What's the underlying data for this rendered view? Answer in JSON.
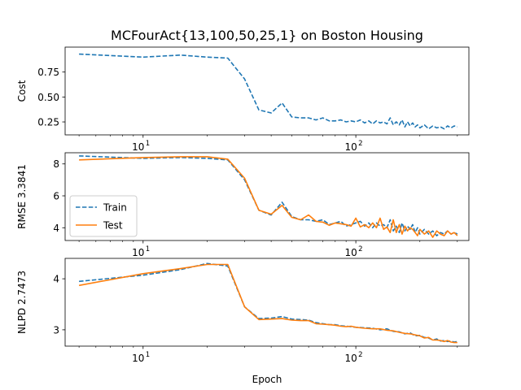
{
  "chart_data": {
    "type": "line",
    "title": "MCFourAct{13,100,50,25,1} on Boston Housing",
    "xlabel": "Epoch",
    "x_scale": "log",
    "xlim": [
      4.3,
      340
    ],
    "x_major_ticks": [
      {
        "base": "10",
        "exp": "1",
        "value": 10
      },
      {
        "base": "10",
        "exp": "2",
        "value": 100
      }
    ],
    "series_styles": {
      "Train": {
        "color": "#1f77b4",
        "dash": "dashed"
      },
      "Test": {
        "color": "#ff7f0e",
        "dash": "solid"
      }
    },
    "legend": {
      "entries": [
        "Train",
        "Test"
      ],
      "placement": "center-left",
      "panel": 1
    },
    "panels": [
      {
        "ylabel": "Cost",
        "ylim": [
          0.12,
          1.0
        ],
        "yticks": [
          {
            "label": "0.25",
            "value": 0.25
          },
          {
            "label": "0.50",
            "value": 0.5
          },
          {
            "label": "0.75",
            "value": 0.75
          }
        ],
        "series": [
          {
            "style": "Train",
            "x": [
              5,
              10,
              15,
              20,
              25,
              30,
              35,
              40,
              45,
              50,
              55,
              60,
              65,
              70,
              75,
              80,
              85,
              90,
              95,
              100,
              105,
              110,
              115,
              120,
              125,
              130,
              135,
              140,
              145,
              150,
              155,
              160,
              165,
              170,
              175,
              180,
              185,
              190,
              195,
              200,
              210,
              220,
              230,
              240,
              250,
              260,
              270,
              280,
              290,
              300
            ],
            "y": [
              0.93,
              0.9,
              0.92,
              0.9,
              0.89,
              0.68,
              0.37,
              0.34,
              0.44,
              0.3,
              0.29,
              0.29,
              0.27,
              0.29,
              0.26,
              0.26,
              0.27,
              0.25,
              0.26,
              0.25,
              0.27,
              0.24,
              0.26,
              0.23,
              0.26,
              0.24,
              0.25,
              0.23,
              0.29,
              0.22,
              0.25,
              0.22,
              0.27,
              0.2,
              0.25,
              0.21,
              0.24,
              0.2,
              0.22,
              0.19,
              0.22,
              0.18,
              0.21,
              0.19,
              0.2,
              0.18,
              0.21,
              0.19,
              0.21,
              0.2
            ]
          }
        ]
      },
      {
        "ylabel": "RMSE 3.3841",
        "ylim": [
          3.2,
          8.7
        ],
        "yticks": [
          {
            "label": "4",
            "value": 4
          },
          {
            "label": "6",
            "value": 6
          },
          {
            "label": "8",
            "value": 8
          }
        ],
        "series": [
          {
            "style": "Train",
            "x": [
              5,
              10,
              15,
              20,
              25,
              30,
              35,
              40,
              45,
              50,
              55,
              60,
              65,
              70,
              75,
              80,
              85,
              90,
              95,
              100,
              105,
              110,
              115,
              120,
              125,
              130,
              135,
              140,
              145,
              150,
              155,
              160,
              165,
              170,
              175,
              180,
              185,
              190,
              195,
              200,
              210,
              220,
              230,
              240,
              250,
              260,
              270,
              280,
              290,
              300
            ],
            "y": [
              8.5,
              8.35,
              8.4,
              8.35,
              8.25,
              7.0,
              5.1,
              4.8,
              5.6,
              4.7,
              4.5,
              4.5,
              4.4,
              4.5,
              4.2,
              4.3,
              4.4,
              4.1,
              4.2,
              4.3,
              4.4,
              4.1,
              4.3,
              4.0,
              4.3,
              4.1,
              4.2,
              4.0,
              4.5,
              3.8,
              4.1,
              3.7,
              4.3,
              3.8,
              4.1,
              3.9,
              4.2,
              3.7,
              4.0,
              3.6,
              3.9,
              3.6,
              3.8,
              3.5,
              3.7,
              3.6,
              3.8,
              3.6,
              3.7,
              3.6
            ]
          },
          {
            "style": "Test",
            "x": [
              5,
              10,
              15,
              20,
              25,
              30,
              35,
              40,
              45,
              50,
              55,
              60,
              65,
              70,
              75,
              80,
              85,
              90,
              95,
              100,
              105,
              110,
              115,
              120,
              125,
              130,
              135,
              140,
              145,
              150,
              155,
              160,
              165,
              170,
              175,
              180,
              185,
              190,
              195,
              200,
              210,
              220,
              230,
              240,
              250,
              260,
              270,
              280,
              290,
              300
            ],
            "y": [
              8.25,
              8.4,
              8.45,
              8.45,
              8.3,
              7.1,
              5.1,
              4.85,
              5.4,
              4.65,
              4.5,
              4.8,
              4.4,
              4.35,
              4.15,
              4.3,
              4.25,
              4.2,
              4.1,
              4.6,
              4.05,
              4.2,
              4.0,
              4.3,
              4.0,
              4.6,
              3.9,
              4.05,
              3.7,
              4.5,
              3.7,
              4.2,
              3.6,
              4.1,
              3.8,
              4.0,
              3.9,
              3.7,
              3.5,
              3.9,
              3.6,
              3.8,
              3.4,
              3.8,
              3.6,
              3.5,
              3.8,
              3.6,
              3.7,
              3.5
            ]
          }
        ]
      },
      {
        "ylabel": "NLPD 2.7473",
        "ylim": [
          2.68,
          4.4
        ],
        "yticks": [
          {
            "label": "3",
            "value": 3
          },
          {
            "label": "4",
            "value": 4
          }
        ],
        "series": [
          {
            "style": "Train",
            "x": [
              5,
              10,
              15,
              20,
              25,
              30,
              35,
              40,
              45,
              50,
              55,
              60,
              65,
              70,
              75,
              80,
              85,
              90,
              95,
              100,
              110,
              120,
              130,
              140,
              150,
              160,
              170,
              180,
              190,
              200,
              210,
              220,
              230,
              240,
              250,
              260,
              270,
              280,
              290,
              300
            ],
            "y": [
              3.95,
              4.07,
              4.18,
              4.3,
              4.25,
              3.45,
              3.22,
              3.23,
              3.26,
              3.21,
              3.2,
              3.19,
              3.14,
              3.12,
              3.1,
              3.1,
              3.08,
              3.07,
              3.06,
              3.05,
              3.04,
              3.03,
              3.0,
              3.02,
              2.97,
              2.96,
              2.92,
              2.94,
              2.88,
              2.89,
              2.85,
              2.84,
              2.8,
              2.82,
              2.78,
              2.79,
              2.77,
              2.78,
              2.76,
              2.77
            ]
          },
          {
            "style": "Test",
            "x": [
              5,
              10,
              15,
              20,
              25,
              30,
              35,
              40,
              45,
              50,
              55,
              60,
              65,
              70,
              75,
              80,
              85,
              90,
              95,
              100,
              110,
              120,
              130,
              140,
              150,
              160,
              170,
              180,
              190,
              200,
              210,
              220,
              230,
              240,
              250,
              260,
              270,
              280,
              290,
              300
            ],
            "y": [
              3.87,
              4.1,
              4.2,
              4.28,
              4.28,
              3.45,
              3.2,
              3.21,
              3.22,
              3.19,
              3.18,
              3.18,
              3.12,
              3.11,
              3.1,
              3.09,
              3.07,
              3.06,
              3.07,
              3.05,
              3.03,
              3.02,
              3.02,
              2.99,
              2.98,
              2.95,
              2.93,
              2.92,
              2.9,
              2.88,
              2.84,
              2.85,
              2.8,
              2.8,
              2.79,
              2.77,
              2.79,
              2.76,
              2.75,
              2.75
            ]
          }
        ]
      }
    ]
  }
}
